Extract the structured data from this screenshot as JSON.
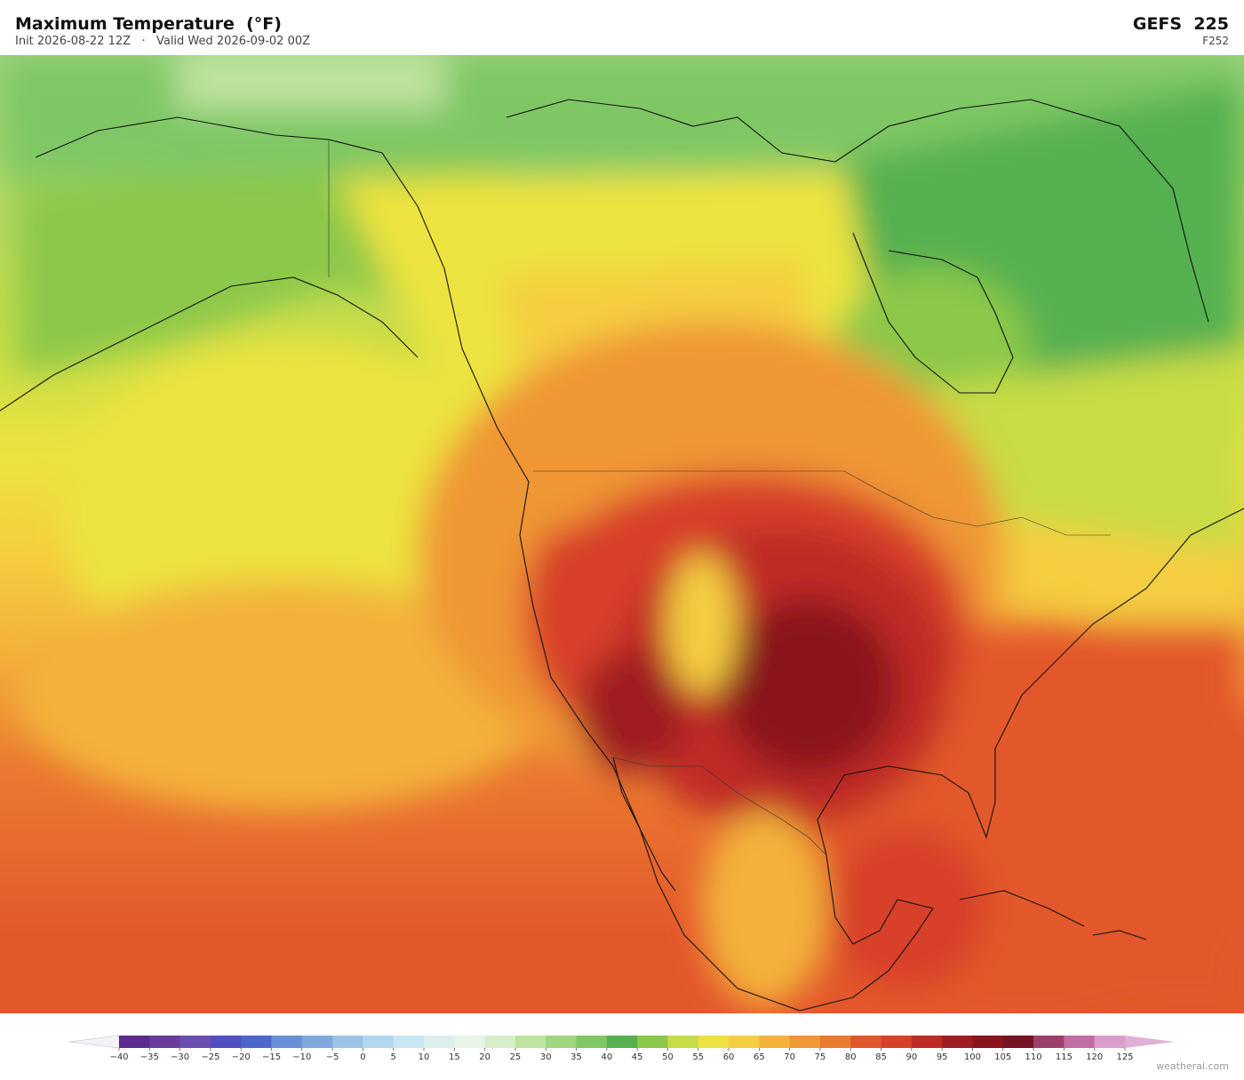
{
  "header": {
    "title": "Maximum Temperature  (°F)",
    "subtitle": "Init 2026-08-22 12Z   ·   Valid Wed 2026-09-02 00Z",
    "model": "GEFS  225",
    "forecast": "F252"
  },
  "colorbar": {
    "ticks": [
      {
        "value": -40,
        "label": "−40"
      },
      {
        "value": -35,
        "label": "−35"
      },
      {
        "value": -30,
        "label": "−30"
      },
      {
        "value": -25,
        "label": "−25"
      },
      {
        "value": -20,
        "label": "−20"
      },
      {
        "value": -15,
        "label": "−15"
      },
      {
        "value": -10,
        "label": "−10"
      },
      {
        "value": -5,
        "label": "−5"
      },
      0,
      5,
      10,
      15,
      20,
      25,
      30,
      35,
      40,
      45,
      50,
      55,
      60,
      65,
      70,
      75,
      80,
      85,
      90,
      95,
      100,
      105,
      110,
      115,
      120,
      125
    ],
    "colors": [
      "#5b2d8e",
      "#6a3d9a",
      "#6b4fb0",
      "#4f4fc0",
      "#4d66cc",
      "#6a8fd6",
      "#7fa7dc",
      "#9cc3e6",
      "#b3d7ee",
      "#c9e5f2",
      "#dcefef",
      "#e6f5e6",
      "#d6eec9",
      "#bfe3a0",
      "#9fd67f",
      "#7fc765",
      "#55b04f",
      "#8cc84a",
      "#c8dc45",
      "#ece340",
      "#f4ce3f",
      "#f3b23a",
      "#ef9635",
      "#ea7a30",
      "#e3582b",
      "#d8402a",
      "#c02a26",
      "#9f1d22",
      "#8a151d",
      "#751322",
      "#9c3f6a",
      "#c06ea3",
      "#d89ec9"
    ],
    "under_color": "#f4f4f8",
    "over_color": "#e0b0d8"
  },
  "watermark": "weatherai.com"
}
